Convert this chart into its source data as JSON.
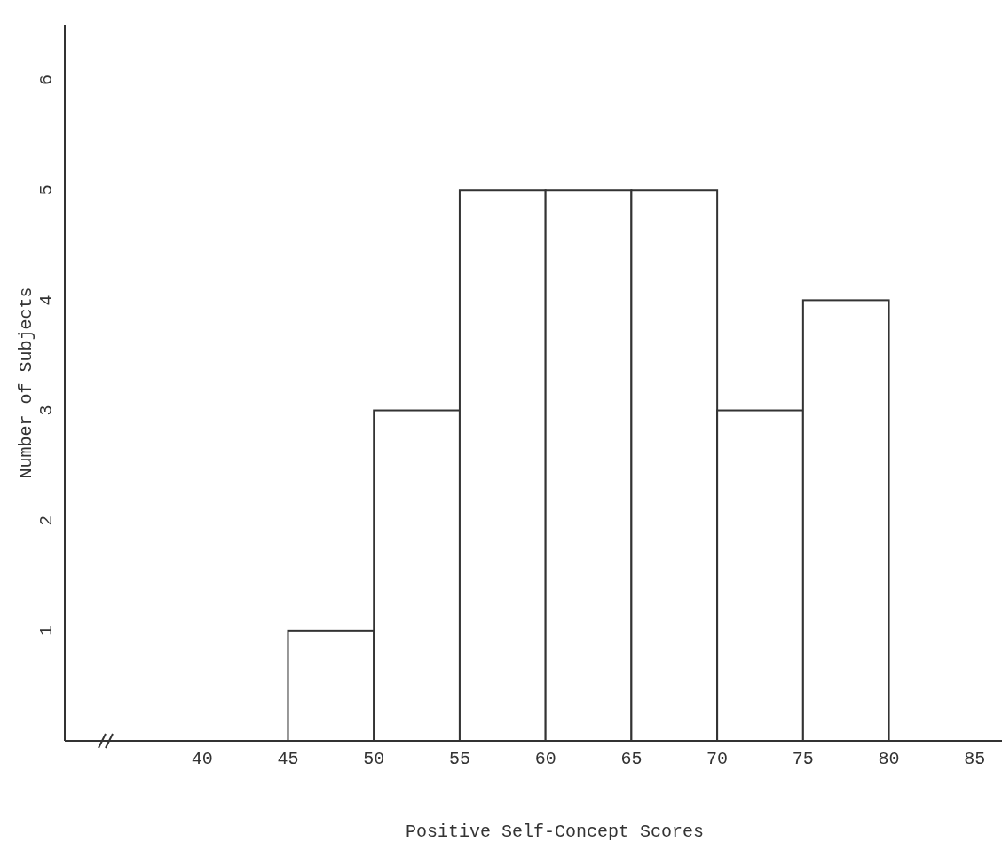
{
  "chart_data": {
    "type": "histogram",
    "xlabel": "Positive Self-Concept Scores",
    "ylabel": "Number of Subjects",
    "bins": [
      45,
      50,
      55,
      60,
      65,
      70,
      75,
      80
    ],
    "values": [
      1,
      3,
      5,
      5,
      5,
      3,
      4
    ],
    "color": "#ffffff",
    "xlim": [
      32,
      87
    ],
    "xticks": [
      40,
      45,
      50,
      55,
      60,
      65,
      70,
      75,
      80,
      85
    ],
    "ylim": [
      0,
      6.5
    ],
    "yticks": [
      1,
      2,
      3,
      4,
      5,
      6
    ],
    "grid": false
  }
}
